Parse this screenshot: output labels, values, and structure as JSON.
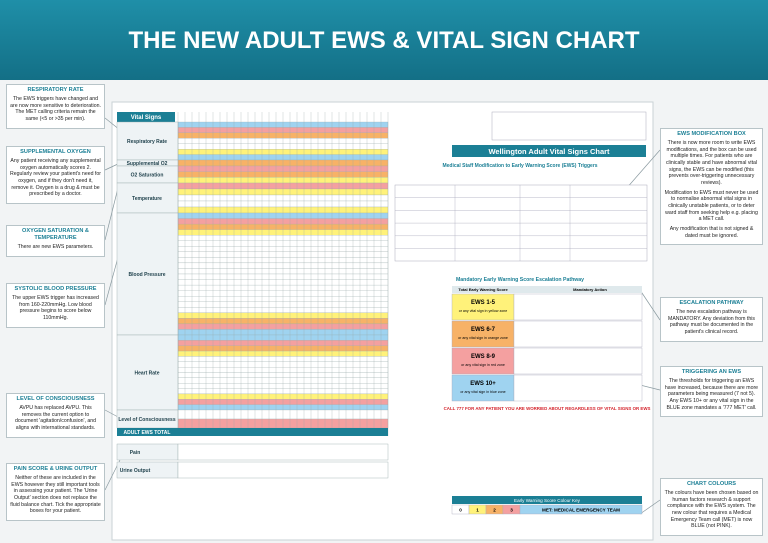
{
  "title": "THE NEW ADULT EWS & VITAL SIGN CHART",
  "left_callouts": [
    {
      "title": "RESPIRATORY RATE",
      "paragraphs": [
        "The EWS triggers have changed and are now more sensitive to deterioration. The MET calling criteria remain the same (<5 or >35 per min)."
      ]
    },
    {
      "title": "SUPPLEMENTAL OXYGEN",
      "paragraphs": [
        "Any patient receiving any supplemental oxygen automatically scores 2. Regularly review your patient's need for oxygen, and if they don't need it, remove it. Oxygen is a drug & must be prescribed by a doctor."
      ]
    },
    {
      "title": "OXYGEN SATURATION & TEMPERATURE",
      "paragraphs": [
        "There are new EWS parameters."
      ]
    },
    {
      "title": "SYSTOLIC BLOOD PRESSURE",
      "paragraphs": [
        "The upper EWS trigger has increased from 160-220mmHg. Low blood pressure begins to score below 110mmHg."
      ]
    },
    {
      "title": "LEVEL OF CONSCIOUSNESS",
      "paragraphs": [
        "AVPU has replaced AVPU. This removes the current option to document 'agitation/confusion', and aligns with international standards."
      ]
    },
    {
      "title": "PAIN SCORE & URINE OUTPUT",
      "paragraphs": [
        "Neither of these are included in the EWS however they still important tools in assessing your patient. The 'Urine Output' section does not replace the fluid balance chart. Tick the appropriate boxes for your patient."
      ]
    }
  ],
  "right_callouts": [
    {
      "title": "EWS MODIFICATION BOX",
      "paragraphs": [
        "There is now more room to write EWS modifications, and the box can be used multiple times. For patients who are clinically stable and have abnormal vital signs, the EWS can be modified (this prevents over-triggering unnecessary reviews).",
        "Modification to EWS must never be used to normalise abnormal vital signs in clinically unstable patients, or to deter ward staff from seeking help e.g. placing a MET call.",
        "Any modification that is not signed & dated must be ignored."
      ]
    },
    {
      "title": "ESCALATION PATHWAY",
      "paragraphs": [
        "The new escalation pathway is MANDATORY. Any deviation from this pathway must be documented in the patient's clinical record."
      ]
    },
    {
      "title": "TRIGGERING AN EWS",
      "paragraphs": [
        "The thresholds for triggering an EWS have increased, because there are more parameters being measured (7 not 5). Any EWS 10+ or any vital sign in the BLUE zone mandates a '777 MET' call."
      ]
    },
    {
      "title": "CHART COLOURS",
      "paragraphs": [
        "The colours have been chosen based on human factors research & support compliance with the EWS system. The new colour that requires a Medical Emergency Team call (MET) is now BLUE (not PINK)."
      ]
    }
  ],
  "chart": {
    "title": "Vital Signs",
    "rows": [
      "Respiratory Rate",
      "Supplemental O2",
      "O2 Saturation",
      "Temperature",
      "Blood Pressure",
      "Heart Rate",
      "Level of Consciousness"
    ],
    "total_label": "ADULT EWS TOTAL",
    "extra_rows": [
      "Pain",
      "Urine Output"
    ]
  },
  "form": {
    "title": "Wellington Adult Vital Signs Chart",
    "modification_heading": "Medical Staff Modification to Early Warning Score (EWS) Triggers",
    "escalation_heading": "Mandatory Early Warning Score Escalation Pathway",
    "columns": [
      "Total Early Warning Score",
      "Mandatory Action"
    ],
    "ews_levels": [
      {
        "name": "EWS 1-5",
        "desc": "or any vital sign in yellow zone"
      },
      {
        "name": "EWS 6-7",
        "desc": "or any vital sign in orange zone"
      },
      {
        "name": "EWS 8-9",
        "desc": "or any vital sign in red zone"
      },
      {
        "name": "EWS 10+",
        "desc": "or any vital sign in blue zone"
      }
    ],
    "call_777": "CALL 777 FOR ANY PATIENT YOU ARE WORRIED ABOUT REGARDLESS OF VITAL SIGNS OR EWS",
    "colour_key_heading": "Early Warning Score Colour Key",
    "colour_key": [
      "0",
      "1",
      "2",
      "3",
      "MET: MEDICAL EMERGENCY TEAM"
    ]
  }
}
